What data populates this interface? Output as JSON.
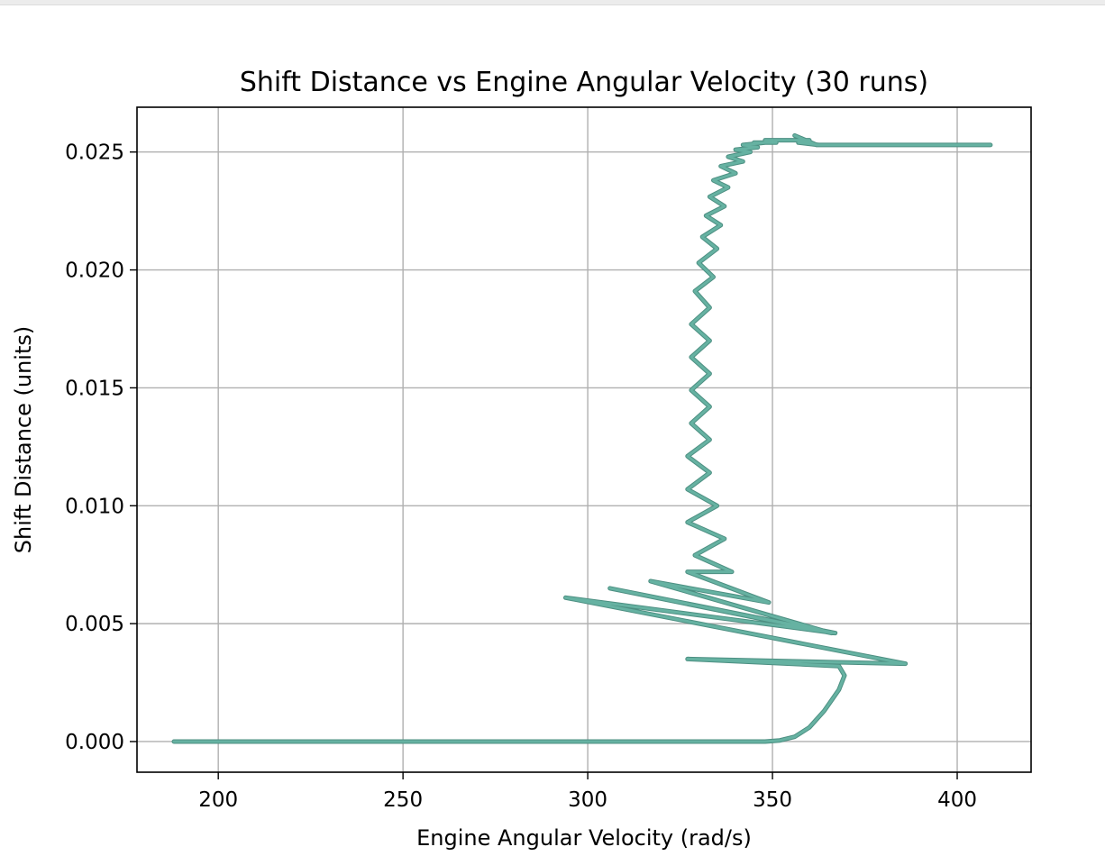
{
  "chart_data": {
    "type": "line",
    "title": "Shift Distance vs Engine Angular Velocity (30 runs)",
    "xlabel": "Engine Angular Velocity (rad/s)",
    "ylabel": "Shift Distance (units)",
    "xlim": [
      178,
      420
    ],
    "ylim": [
      -0.0013,
      0.0269
    ],
    "xticks": [
      200,
      250,
      300,
      350,
      400
    ],
    "xtick_labels": [
      "200",
      "250",
      "300",
      "350",
      "400"
    ],
    "yticks": [
      0.0,
      0.005,
      0.01,
      0.015,
      0.02,
      0.025
    ],
    "ytick_labels": [
      "0.000",
      "0.005",
      "0.010",
      "0.015",
      "0.020",
      "0.025"
    ],
    "grid": true,
    "legend": "none",
    "colors": {
      "line": "#66b2a2",
      "line_edge": "#4d8f82",
      "grid": "#b0b0b0",
      "axes": "#000000"
    },
    "series": [
      {
        "x": [
          188,
          220,
          260,
          300,
          330,
          348,
          352,
          356,
          360,
          364,
          368,
          369.5,
          368,
          327,
          386,
          294,
          367,
          306,
          366,
          317,
          349,
          327,
          339,
          329,
          337,
          327,
          335,
          327,
          333,
          327,
          333,
          328,
          333,
          328,
          333,
          328,
          333,
          328,
          333,
          329,
          334,
          330,
          335,
          331,
          336,
          332,
          337,
          333,
          338,
          334,
          340,
          336,
          342,
          338,
          344,
          340,
          346,
          342,
          348,
          345,
          351,
          348,
          354,
          351,
          357,
          354,
          360,
          357,
          362.5,
          362,
          356,
          362,
          409
        ],
        "y": [
          0.0,
          0.0,
          0.0,
          0.0,
          0.0,
          0.0,
          5e-05,
          0.0002,
          0.0006,
          0.0013,
          0.0022,
          0.0028,
          0.0032,
          0.0035,
          0.0033,
          0.0061,
          0.0046,
          0.0065,
          0.0046,
          0.0068,
          0.0059,
          0.0072,
          0.0072,
          0.0079,
          0.0086,
          0.0093,
          0.01,
          0.0107,
          0.0114,
          0.0121,
          0.0128,
          0.0135,
          0.0142,
          0.0149,
          0.0156,
          0.0163,
          0.017,
          0.0177,
          0.0184,
          0.0191,
          0.0197,
          0.0203,
          0.0209,
          0.0214,
          0.0219,
          0.0223,
          0.0227,
          0.0231,
          0.0235,
          0.0238,
          0.0241,
          0.0244,
          0.0246,
          0.0248,
          0.025,
          0.0251,
          0.0252,
          0.0253,
          0.0254,
          0.0254,
          0.0254,
          0.0255,
          0.0255,
          0.0255,
          0.0255,
          0.0255,
          0.0255,
          0.0254,
          0.0253,
          0.0253,
          0.0257,
          0.0253,
          0.0253
        ]
      }
    ]
  }
}
